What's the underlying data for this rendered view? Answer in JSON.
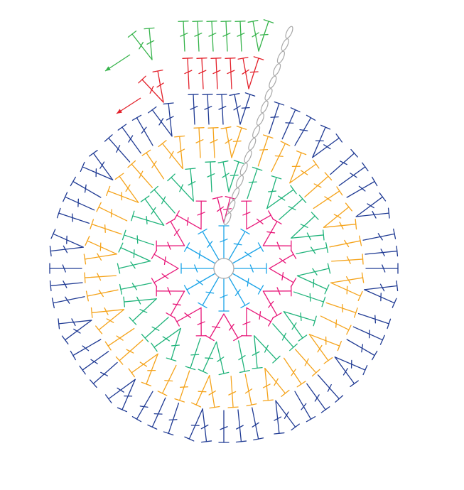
{
  "diagram": {
    "type": "crochet-chart",
    "spokes": 12,
    "rounds": [
      {
        "round": 1,
        "color": "#1aa3e8",
        "stitches_per_spoke": 1
      },
      {
        "round": 2,
        "color": "#e8197a",
        "stitches_per_spoke": 2
      },
      {
        "round": 3,
        "color": "#1fb37a",
        "stitches_per_spoke": 3
      },
      {
        "round": 4,
        "color": "#f5a31a",
        "stitches_per_spoke": 4
      },
      {
        "round": 5,
        "color": "#1f3a93",
        "stitches_per_spoke": 5
      },
      {
        "round": 6,
        "color": "#e3202a",
        "stitches_per_spoke": 6
      },
      {
        "round": 7,
        "color": "#35b34a",
        "stitches_per_spoke": 7
      }
    ],
    "ring_color": "#a8a8a8",
    "chain_color": "#a8a8a8",
    "arrows": [
      {
        "color": "#35b34a"
      },
      {
        "color": "#e3202a"
      }
    ]
  }
}
